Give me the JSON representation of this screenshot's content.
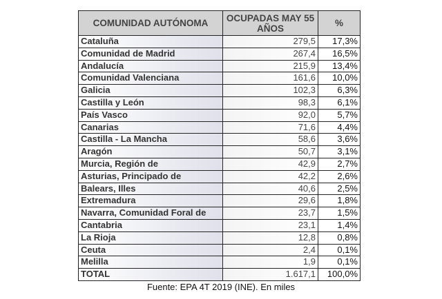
{
  "table": {
    "headers": [
      "COMUNIDAD AUTÓNOMA",
      "OCUPADAS MAY 55 AÑOS",
      "%"
    ],
    "rows": [
      [
        "Cataluña",
        "279,5",
        "17,3%"
      ],
      [
        "Comunidad de Madrid",
        "267,4",
        "16,5%"
      ],
      [
        "Andalucía",
        "215,9",
        "13,4%"
      ],
      [
        "Comunidad Valenciana",
        "161,6",
        "10,0%"
      ],
      [
        "Galicia",
        "102,3",
        "6,3%"
      ],
      [
        "Castilla y León",
        "98,3",
        "6,1%"
      ],
      [
        "País Vasco",
        "92,0",
        "5,7%"
      ],
      [
        "Canarias",
        "71,6",
        "4,4%"
      ],
      [
        "Castilla - La Mancha",
        "58,6",
        "3,6%"
      ],
      [
        "Aragón",
        "50,7",
        "3,1%"
      ],
      [
        "Murcia, Región de",
        "42,9",
        "2,7%"
      ],
      [
        "Asturias, Principado de",
        "42,2",
        "2,6%"
      ],
      [
        "Balears, Illes",
        "40,6",
        "2,5%"
      ],
      [
        "Extremadura",
        "29,6",
        "1,8%"
      ],
      [
        "Navarra, Comunidad Foral de",
        "23,7",
        "1,5%"
      ],
      [
        "Cantabria",
        "23,1",
        "1,4%"
      ],
      [
        "La Rioja",
        "12,8",
        "0,8%"
      ],
      [
        "Ceuta",
        "2,4",
        "0,1%"
      ],
      [
        "Melilla",
        "1,9",
        "0,1%"
      ],
      [
        "TOTAL",
        "1.617,1",
        "100,0%"
      ]
    ]
  },
  "caption": "Fuente: EPA 4T 2019 (INE). En miles"
}
